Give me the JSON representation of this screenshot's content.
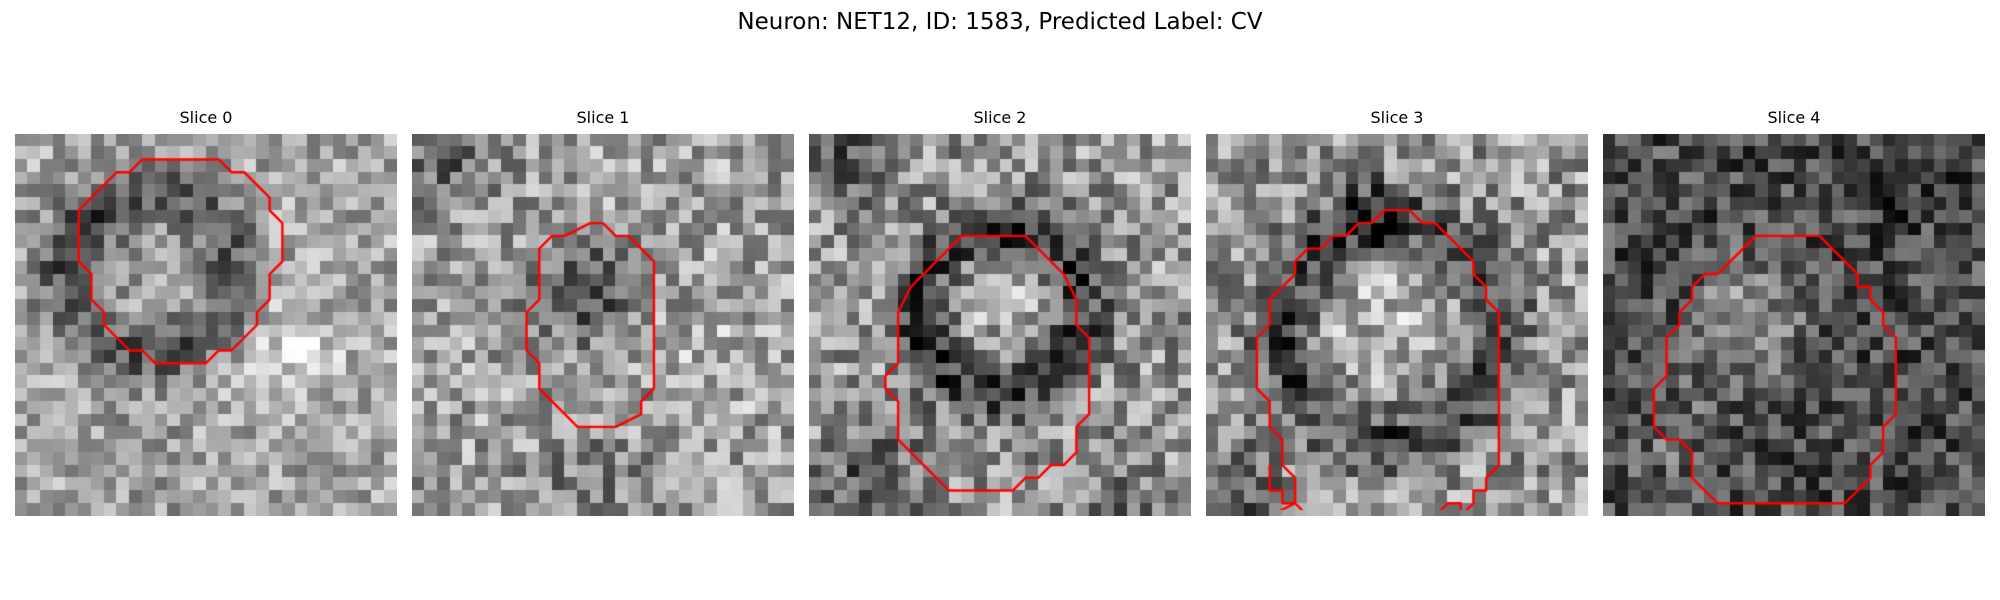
{
  "figure": {
    "title": "Neuron: NET12, ID: 1583, Predicted Label: CV"
  },
  "contour_color": "#ff0000",
  "panels": [
    {
      "title": "Slice 0"
    },
    {
      "title": "Slice 1"
    },
    {
      "title": "Slice 2"
    },
    {
      "title": "Slice 3"
    },
    {
      "title": "Slice 4"
    }
  ]
}
